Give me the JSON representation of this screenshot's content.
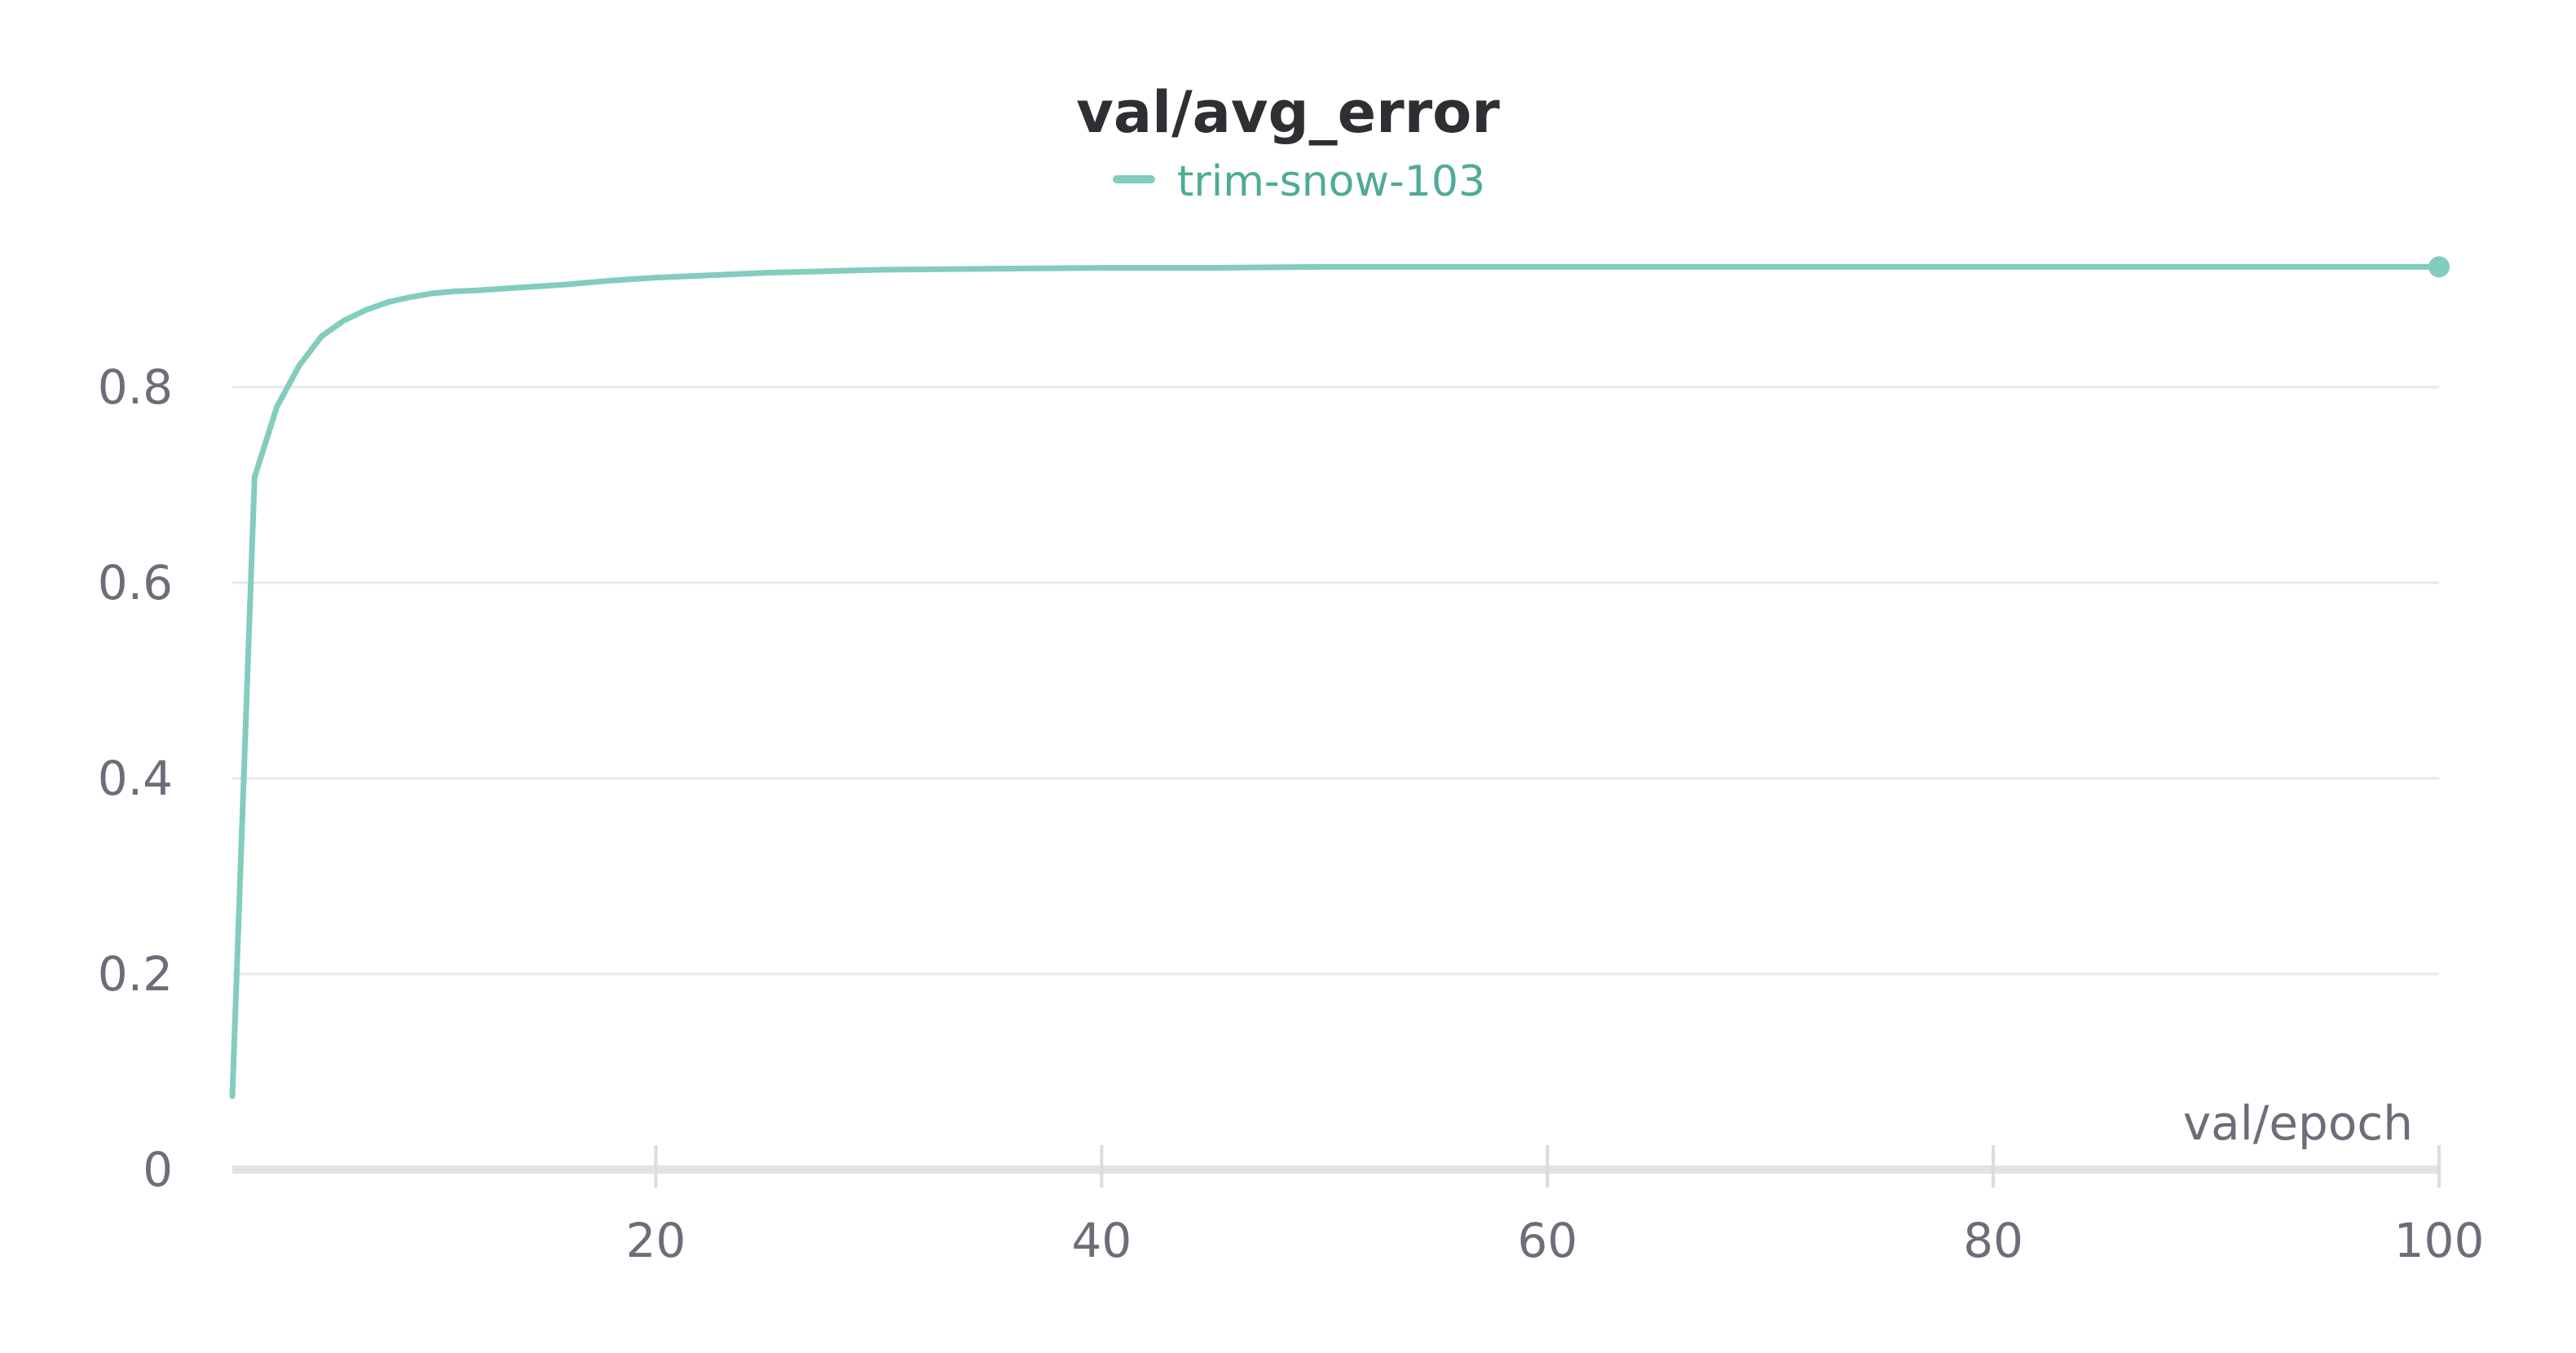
{
  "chart_data": {
    "type": "line",
    "title": "val/avg_error",
    "xlabel": "val/epoch",
    "ylabel": "",
    "xlim": [
      1,
      100
    ],
    "ylim": [
      0,
      0.9
    ],
    "x_ticks": [
      20,
      40,
      60,
      80,
      100
    ],
    "y_ticks": [
      0,
      0.2,
      0.4,
      0.6,
      0.8
    ],
    "y_tick_labels": [
      "0",
      "0.2",
      "0.4",
      "0.6",
      "0.8"
    ],
    "x_tick_labels": [
      "20",
      "40",
      "60",
      "80",
      "100"
    ],
    "grid": true,
    "legend_position": "top-center",
    "series": [
      {
        "name": "trim-snow-103",
        "color": "#82cdbd",
        "legend_text_color": "#4eab96",
        "x": [
          1,
          2,
          3,
          4,
          5,
          6,
          7,
          8,
          9,
          10,
          11,
          12,
          14,
          16,
          18,
          20,
          22,
          25,
          30,
          35,
          40,
          45,
          50,
          55,
          60,
          65,
          70,
          75,
          80,
          85,
          90,
          95,
          100
        ],
        "y": [
          0.075,
          0.708,
          0.78,
          0.822,
          0.852,
          0.868,
          0.879,
          0.887,
          0.892,
          0.896,
          0.898,
          0.899,
          0.902,
          0.905,
          0.909,
          0.912,
          0.914,
          0.917,
          0.92,
          0.921,
          0.922,
          0.922,
          0.923,
          0.923,
          0.923,
          0.923,
          0.923,
          0.923,
          0.923,
          0.923,
          0.923,
          0.923,
          0.923
        ]
      }
    ]
  }
}
